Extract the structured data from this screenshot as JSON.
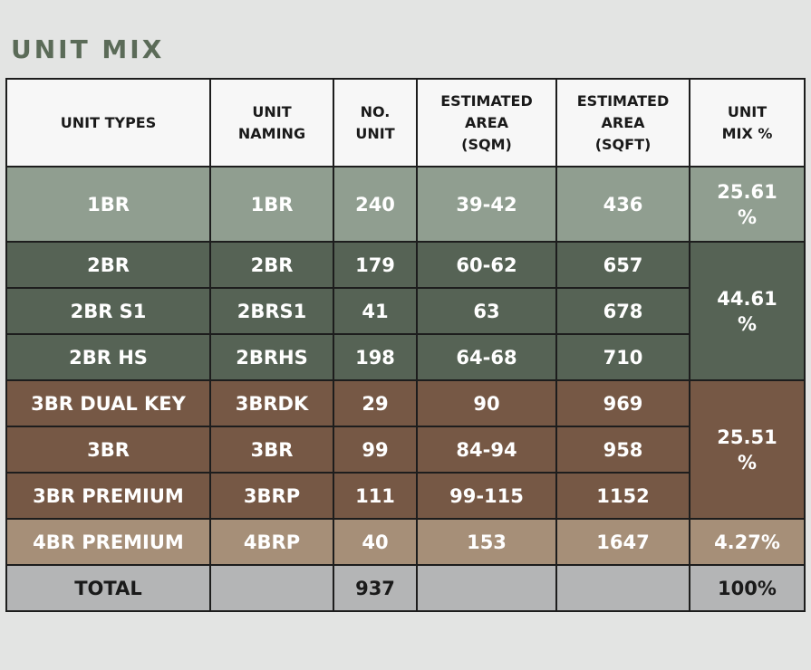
{
  "title": "UNIT MIX",
  "headers": {
    "unit_types": [
      "UNIT TYPES"
    ],
    "unit_naming": [
      "UNIT",
      "NAMING"
    ],
    "no_unit": [
      "NO.",
      "UNIT"
    ],
    "area_sqm": [
      "ESTIMATED",
      "AREA",
      "(SQM)"
    ],
    "area_sqft": [
      "ESTIMATED",
      "AREA",
      "(SQFT)"
    ],
    "unit_mix": [
      "UNIT",
      "MIX %"
    ]
  },
  "rows": [
    {
      "type": "1BR",
      "naming": "1BR",
      "units": "240",
      "sqm": "39-42",
      "sqft": "436"
    },
    {
      "type": "2BR",
      "naming": "2BR",
      "units": "179",
      "sqm": "60-62",
      "sqft": "657"
    },
    {
      "type": "2BR S1",
      "naming": "2BRS1",
      "units": "41",
      "sqm": "63",
      "sqft": "678"
    },
    {
      "type": "2BR HS",
      "naming": "2BRHS",
      "units": "198",
      "sqm": "64-68",
      "sqft": "710"
    },
    {
      "type": "3BR DUAL KEY",
      "naming": "3BRDK",
      "units": "29",
      "sqm": "90",
      "sqft": "969"
    },
    {
      "type": "3BR",
      "naming": "3BR",
      "units": "99",
      "sqm": "84-94",
      "sqft": "958"
    },
    {
      "type": "3BR PREMIUM",
      "naming": "3BRP",
      "units": "111",
      "sqm": "99-115",
      "sqft": "1152"
    },
    {
      "type": "4BR PREMIUM",
      "naming": "4BRP",
      "units": "40",
      "sqm": "153",
      "sqft": "1647"
    }
  ],
  "mix": {
    "g1": [
      "25.61",
      "%"
    ],
    "g2": [
      "44.61",
      "%"
    ],
    "g3": [
      "25.51",
      "%"
    ],
    "g4": "4.27%"
  },
  "total": {
    "label": "TOTAL",
    "units": "937",
    "mix": "100%"
  },
  "colors": {
    "title": "#5b6b58",
    "header_bg": "#f7f7f7",
    "group_1br": "#909e90",
    "group_2br": "#566355",
    "group_3br": "#765845",
    "group_4br": "#a68f78",
    "total_bg": "#b4b5b6"
  }
}
